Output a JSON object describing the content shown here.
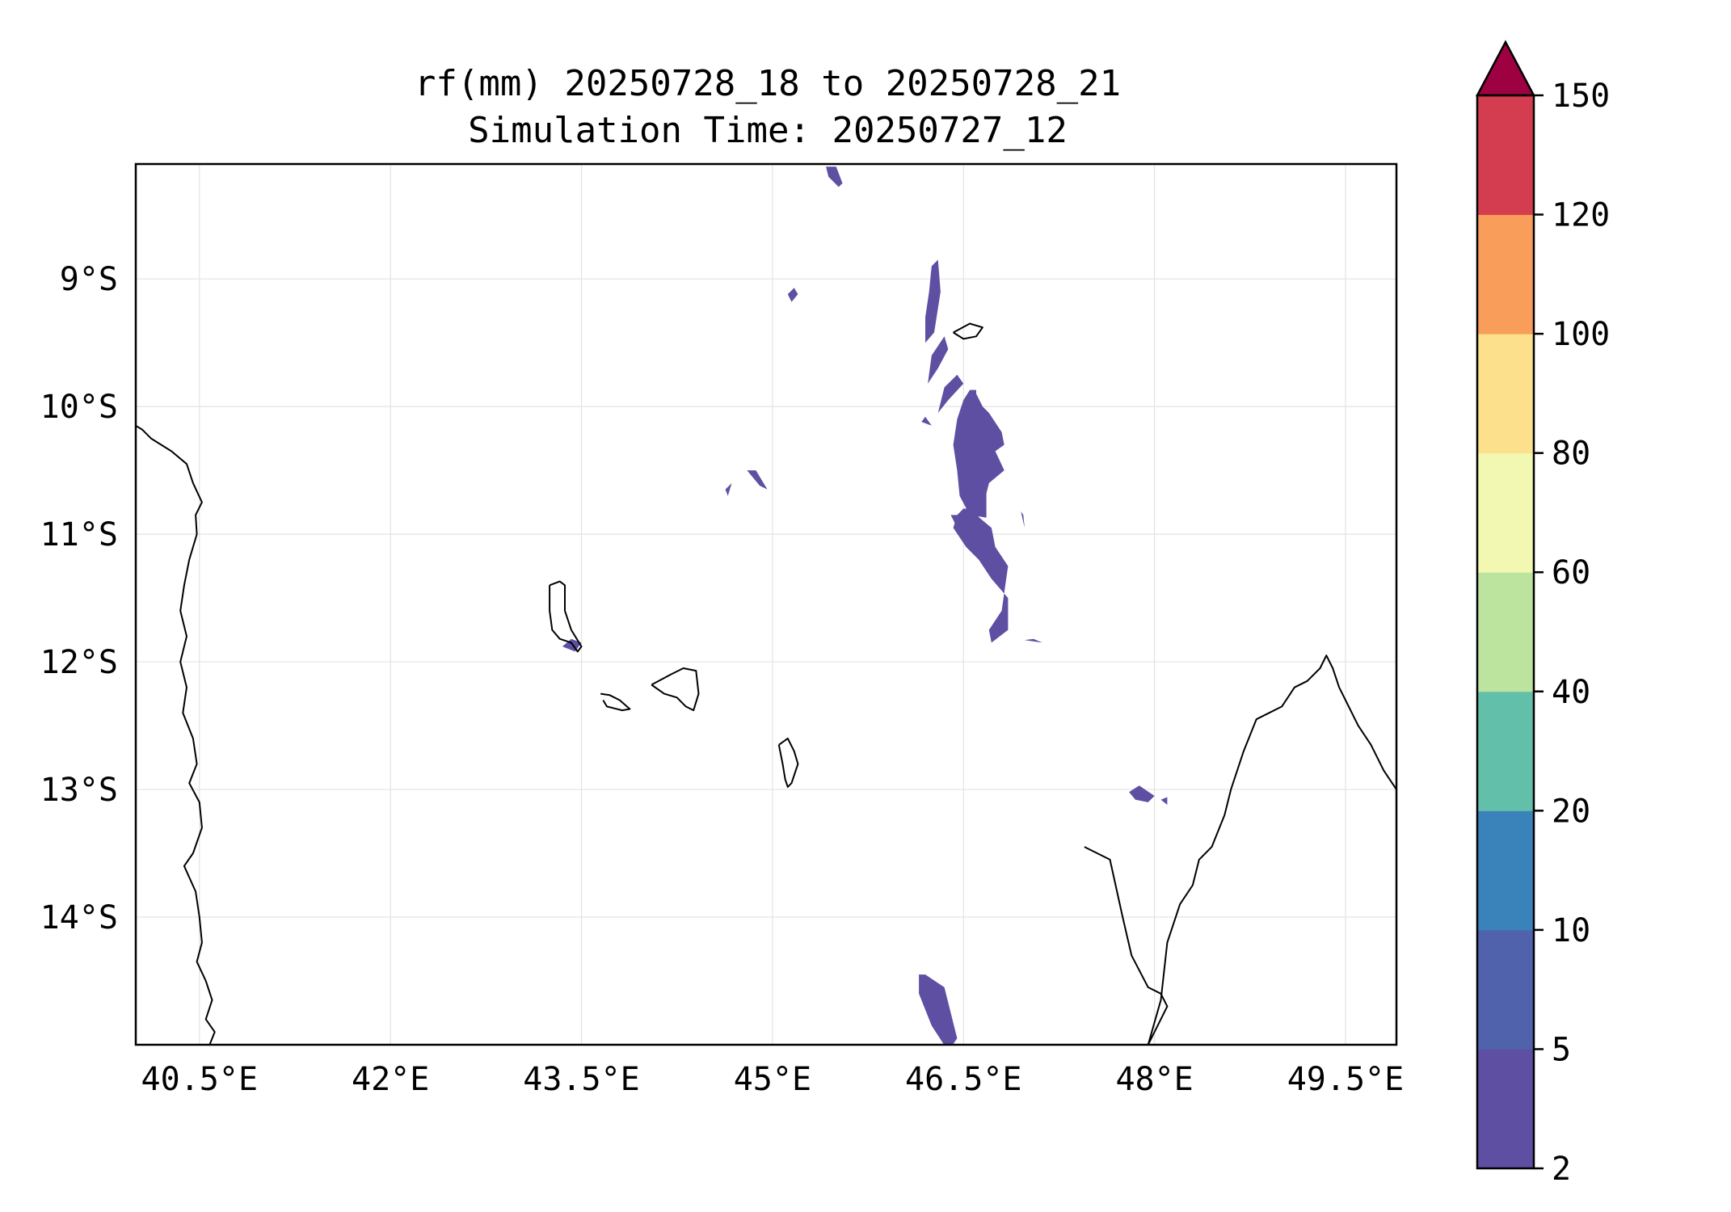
{
  "title": {
    "line1": "rf(mm) 20250728_18 to 20250728_21",
    "line2": "Simulation Time: 20250727_12"
  },
  "map": {
    "lon_range": [
      40.0,
      49.9
    ],
    "lat_range": [
      -15.0,
      -8.1
    ],
    "lon_ticks": [
      {
        "value": 40.5,
        "label": "40.5°E"
      },
      {
        "value": 42.0,
        "label": "42°E"
      },
      {
        "value": 43.5,
        "label": "43.5°E"
      },
      {
        "value": 45.0,
        "label": "45°E"
      },
      {
        "value": 46.5,
        "label": "46.5°E"
      },
      {
        "value": 48.0,
        "label": "48°E"
      },
      {
        "value": 49.5,
        "label": "49.5°E"
      }
    ],
    "lat_ticks": [
      {
        "value": -9,
        "label": "9°S"
      },
      {
        "value": -10,
        "label": "10°S"
      },
      {
        "value": -11,
        "label": "11°S"
      },
      {
        "value": -12,
        "label": "12°S"
      },
      {
        "value": -13,
        "label": "13°S"
      },
      {
        "value": -14,
        "label": "14°S"
      }
    ],
    "gridlines": true
  },
  "colorbar": {
    "levels": [
      {
        "value": 2,
        "label": "2"
      },
      {
        "value": 5,
        "label": "5"
      },
      {
        "value": 10,
        "label": "10"
      },
      {
        "value": 20,
        "label": "20"
      },
      {
        "value": 40,
        "label": "40"
      },
      {
        "value": 60,
        "label": "60"
      },
      {
        "value": 80,
        "label": "80"
      },
      {
        "value": 100,
        "label": "100"
      },
      {
        "value": 120,
        "label": "120"
      },
      {
        "value": 150,
        "label": "150"
      }
    ],
    "colors": [
      "#5e4fa2",
      "#4f62ab",
      "#3a82ba",
      "#62bfa9",
      "#bde49e",
      "#f2f8b1",
      "#fde08b",
      "#f99e5a",
      "#d43d50"
    ],
    "extend_color": "#9e0142",
    "extend": "max"
  },
  "rain_cells": [
    {
      "lon": [
        45.42,
        45.5,
        45.55,
        45.52,
        45.44
      ],
      "lat": [
        -8.12,
        -8.12,
        -8.25,
        -8.28,
        -8.2
      ]
    },
    {
      "lon": [
        46.2,
        46.27,
        46.32,
        46.3,
        46.25,
        46.23,
        46.2
      ],
      "lat": [
        -9.5,
        -9.42,
        -9.1,
        -8.85,
        -8.9,
        -9.1,
        -9.3
      ]
    },
    {
      "lon": [
        45.15,
        45.2,
        45.17,
        45.12
      ],
      "lat": [
        -9.18,
        -9.12,
        -9.07,
        -9.12
      ]
    },
    {
      "lon": [
        46.22,
        46.3,
        46.38,
        46.35,
        46.25
      ],
      "lat": [
        -9.82,
        -9.7,
        -9.55,
        -9.45,
        -9.6
      ]
    },
    {
      "lon": [
        46.3,
        46.38,
        46.5,
        46.45,
        46.35
      ],
      "lat": [
        -10.05,
        -9.95,
        -9.82,
        -9.75,
        -9.85
      ]
    },
    {
      "lon": [
        46.17,
        46.25,
        46.2
      ],
      "lat": [
        -10.12,
        -10.15,
        -10.08
      ]
    },
    {
      "lon": [
        46.4,
        46.45,
        46.47,
        46.5,
        46.6,
        46.68,
        46.7,
        46.62,
        46.6,
        46.65,
        46.7,
        46.82,
        46.75,
        46.82,
        46.8,
        46.7,
        46.65,
        46.6,
        46.6,
        46.55,
        46.5,
        46.45,
        46.42,
        46.45,
        46.47,
        46.55,
        46.68,
        46.68,
        46.58,
        46.52,
        46.45
      ],
      "lat": [
        -10.85,
        -10.95,
        -11.0,
        -11.05,
        -11.05,
        -11.05,
        -11.0,
        -10.95,
        -10.9,
        -10.8,
        -10.6,
        -10.5,
        -10.35,
        -10.3,
        -10.2,
        -10.05,
        -10.0,
        -9.9,
        -9.87,
        -9.87,
        -9.95,
        -10.1,
        -10.3,
        -10.5,
        -10.7,
        -10.85,
        -10.87,
        -10.6,
        -10.6,
        -10.85,
        -10.85
      ]
    },
    {
      "lon": [
        46.42,
        46.52,
        46.62,
        46.72,
        46.85,
        46.85,
        46.72,
        46.7,
        46.8,
        46.85,
        46.75,
        46.72,
        46.6,
        46.6,
        46.5,
        46.45,
        46.42
      ],
      "lat": [
        -10.95,
        -11.1,
        -11.2,
        -11.35,
        -11.5,
        -11.75,
        -11.85,
        -11.75,
        -11.6,
        -11.25,
        -11.1,
        -10.95,
        -10.85,
        -10.8,
        -10.8,
        -10.85,
        -10.95
      ]
    },
    {
      "lon": [
        44.8,
        44.87,
        44.96,
        44.9
      ],
      "lat": [
        -10.5,
        -10.5,
        -10.65,
        -10.62
      ]
    },
    {
      "lon": [
        44.63,
        44.68,
        44.65
      ],
      "lat": [
        -10.65,
        -10.6,
        -10.7
      ]
    },
    {
      "lon": [
        46.95,
        46.97,
        46.98
      ],
      "lat": [
        -10.82,
        -10.85,
        -10.95
      ]
    },
    {
      "lon": [
        46.98,
        47.12,
        47.05
      ],
      "lat": [
        -11.83,
        -11.85,
        -11.82
      ]
    },
    {
      "lon": [
        43.35,
        43.45,
        43.5,
        43.42
      ],
      "lat": [
        -11.88,
        -11.92,
        -11.85,
        -11.82
      ]
    },
    {
      "lon": [
        47.8,
        47.88,
        48.0,
        47.95,
        47.85
      ],
      "lat": [
        -13.02,
        -12.97,
        -13.05,
        -13.1,
        -13.08
      ]
    },
    {
      "lon": [
        48.05,
        48.1,
        48.1
      ],
      "lat": [
        -13.08,
        -13.06,
        -13.12
      ]
    },
    {
      "lon": [
        46.15,
        46.2,
        46.35,
        46.4,
        46.45,
        46.38,
        46.25,
        46.15
      ],
      "lat": [
        -14.45,
        -14.45,
        -14.55,
        -14.75,
        -14.95,
        -15.05,
        -14.85,
        -14.6
      ]
    }
  ],
  "coastlines": [
    {
      "lon": [
        40.0,
        40.05,
        40.12,
        40.2,
        40.28,
        40.4,
        40.45,
        40.52,
        40.47,
        40.48,
        40.42,
        40.38,
        40.35,
        40.4,
        40.35,
        40.4,
        40.37,
        40.45,
        40.48,
        40.42,
        40.5,
        40.52,
        40.45,
        40.38,
        40.47,
        40.5,
        40.52,
        40.48,
        40.55,
        40.6,
        40.55,
        40.62,
        40.58,
        40.48,
        40.5
      ],
      "lat": [
        -10.15,
        -10.18,
        -10.25,
        -10.3,
        -10.35,
        -10.45,
        -10.6,
        -10.75,
        -10.85,
        -11.0,
        -11.2,
        -11.4,
        -11.6,
        -11.8,
        -12.0,
        -12.2,
        -12.4,
        -12.6,
        -12.8,
        -12.95,
        -13.1,
        -13.3,
        -13.5,
        -13.6,
        -13.8,
        -14.0,
        -14.2,
        -14.35,
        -14.5,
        -14.65,
        -14.8,
        -14.9,
        -15.0,
        -15.0,
        -15.0
      ]
    },
    {
      "lon": [
        43.25,
        43.33,
        43.37,
        43.37,
        43.42,
        43.5,
        43.47,
        43.42,
        43.33,
        43.27,
        43.25,
        43.25
      ],
      "lat": [
        -11.4,
        -11.37,
        -11.4,
        -11.6,
        -11.75,
        -11.88,
        -11.92,
        -11.85,
        -11.82,
        -11.75,
        -11.6,
        -11.4
      ]
    },
    {
      "lon": [
        43.65,
        43.72,
        43.8,
        43.88,
        43.82,
        43.7,
        43.67
      ],
      "lat": [
        -12.25,
        -12.26,
        -12.3,
        -12.37,
        -12.38,
        -12.35,
        -12.3
      ]
    },
    {
      "lon": [
        44.05,
        44.2,
        44.3,
        44.4,
        44.42,
        44.38,
        44.32,
        44.25,
        44.15,
        44.05
      ],
      "lat": [
        -12.18,
        -12.1,
        -12.05,
        -12.07,
        -12.25,
        -12.38,
        -12.35,
        -12.28,
        -12.25,
        -12.18
      ]
    },
    {
      "lon": [
        45.05,
        45.12,
        45.17,
        45.2,
        45.15,
        45.12,
        45.1,
        45.08,
        45.05
      ],
      "lat": [
        -12.65,
        -12.6,
        -12.7,
        -12.8,
        -12.95,
        -12.98,
        -12.92,
        -12.8,
        -12.65
      ]
    },
    {
      "lon": [
        46.42,
        46.55,
        46.65,
        46.6,
        46.5,
        46.42
      ],
      "lat": [
        -9.42,
        -9.35,
        -9.38,
        -9.45,
        -9.47,
        -9.42
      ]
    },
    {
      "lon": [
        47.95,
        48.05,
        48.1,
        48.2,
        48.3,
        48.35,
        48.45,
        48.55,
        48.6,
        48.7,
        48.8,
        48.9,
        49.0,
        49.1,
        49.2,
        49.3,
        49.35,
        49.4,
        49.45,
        49.5,
        49.6,
        49.7,
        49.8,
        49.9
      ],
      "lat": [
        -15.0,
        -14.65,
        -14.2,
        -13.9,
        -13.75,
        -13.55,
        -13.45,
        -13.2,
        -13.0,
        -12.7,
        -12.45,
        -12.4,
        -12.35,
        -12.2,
        -12.15,
        -12.05,
        -11.95,
        -12.05,
        -12.2,
        -12.3,
        -12.5,
        -12.65,
        -12.85,
        -13.0
      ]
    },
    {
      "lon": [
        47.95,
        48.1,
        48.05,
        47.95,
        47.82,
        47.75,
        47.65,
        47.55,
        47.45
      ],
      "lat": [
        -15.0,
        -14.7,
        -14.6,
        -14.55,
        -14.3,
        -14.0,
        -13.55,
        -13.5,
        -13.45
      ]
    }
  ]
}
